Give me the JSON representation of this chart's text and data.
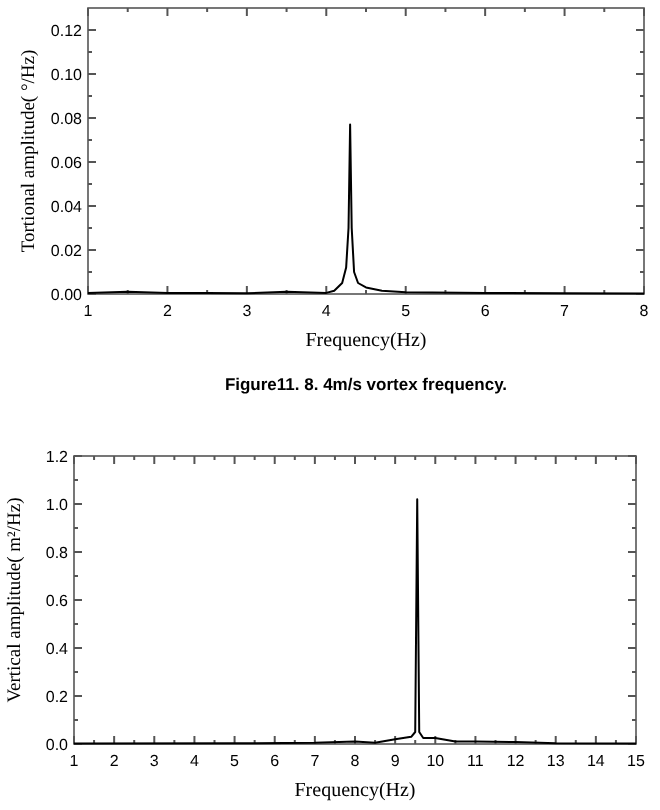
{
  "chart_data": [
    {
      "type": "line",
      "xlabel": "Frequency(Hz)",
      "ylabel": "Tortional amplitude( °/Hz)",
      "annotations": [
        "Figure11. 8. 4m/s vortex frequency."
      ],
      "xlim": [
        1,
        8
      ],
      "ylim": [
        0,
        0.13
      ],
      "xticks": [
        1,
        {
          "value": 1.5,
          "label": null
        },
        2,
        {
          "value": 2.5,
          "label": null
        },
        3,
        {
          "value": 3.5,
          "label": null
        },
        4,
        {
          "value": 4.5,
          "label": null
        },
        5,
        {
          "value": 5.5,
          "label": null
        },
        6,
        {
          "value": 6.5,
          "label": null
        },
        7,
        {
          "value": 7.5,
          "label": null
        },
        8
      ],
      "yticks": [
        {
          "value": 0,
          "label": "0.00"
        },
        {
          "value": 0.01,
          "label": null
        },
        {
          "value": 0.02,
          "label": "0.02"
        },
        {
          "value": 0.03,
          "label": null
        },
        {
          "value": 0.04,
          "label": "0.04"
        },
        {
          "value": 0.05,
          "label": null
        },
        {
          "value": 0.06,
          "label": "0.06"
        },
        {
          "value": 0.07,
          "label": null
        },
        {
          "value": 0.08,
          "label": "0.08"
        },
        {
          "value": 0.09,
          "label": null
        },
        {
          "value": 0.1,
          "label": "0.10"
        },
        {
          "value": 0.11,
          "label": null
        },
        {
          "value": 0.12,
          "label": "0.12"
        }
      ],
      "series": [
        {
          "color": "#000000",
          "x": [
            1,
            1.5,
            2,
            2.5,
            3,
            3.5,
            4,
            4.1,
            4.2,
            4.25,
            4.28,
            4.3,
            4.32,
            4.35,
            4.4,
            4.5,
            4.7,
            5,
            6,
            7,
            8
          ],
          "values": [
            0.0005,
            0.001,
            0.0005,
            0.0005,
            0.0003,
            0.001,
            0.0005,
            0.0015,
            0.005,
            0.012,
            0.03,
            0.077,
            0.03,
            0.01,
            0.005,
            0.003,
            0.0015,
            0.0008,
            0.0005,
            0.0003,
            0.0002
          ]
        }
      ]
    },
    {
      "type": "line",
      "xlabel": "Frequency(Hz)",
      "ylabel": "Vertical amplitude( m²/Hz)",
      "xlim": [
        1,
        15
      ],
      "ylim": [
        0,
        1.2
      ],
      "xticks": [
        1,
        {
          "value": 1.5,
          "label": null
        },
        2,
        {
          "value": 2.5,
          "label": null
        },
        3,
        {
          "value": 3.5,
          "label": null
        },
        4,
        {
          "value": 4.5,
          "label": null
        },
        5,
        {
          "value": 5.5,
          "label": null
        },
        6,
        {
          "value": 6.5,
          "label": null
        },
        7,
        {
          "value": 7.5,
          "label": null
        },
        8,
        {
          "value": 8.5,
          "label": null
        },
        9,
        {
          "value": 9.5,
          "label": null
        },
        10,
        {
          "value": 10.5,
          "label": null
        },
        11,
        {
          "value": 11.5,
          "label": null
        },
        12,
        {
          "value": 12.5,
          "label": null
        },
        13,
        {
          "value": 13.5,
          "label": null
        },
        14,
        {
          "value": 14.5,
          "label": null
        },
        15
      ],
      "yticks": [
        {
          "value": 0,
          "label": "0.0"
        },
        {
          "value": 0.1,
          "label": null
        },
        {
          "value": 0.2,
          "label": "0.2"
        },
        {
          "value": 0.3,
          "label": null
        },
        {
          "value": 0.4,
          "label": "0.4"
        },
        {
          "value": 0.5,
          "label": null
        },
        {
          "value": 0.6,
          "label": "0.6"
        },
        {
          "value": 0.7,
          "label": null
        },
        {
          "value": 0.8,
          "label": "0.8"
        },
        {
          "value": 0.9,
          "label": null
        },
        {
          "value": 1,
          "label": "1.0"
        },
        {
          "value": 1.1,
          "label": null
        },
        {
          "value": 1.2,
          "label": "1.2"
        }
      ],
      "series": [
        {
          "color": "#000000",
          "x": [
            1,
            5,
            7,
            8,
            8.5,
            9,
            9.4,
            9.5,
            9.55,
            9.6,
            9.7,
            10,
            10.5,
            11,
            12,
            13,
            15
          ],
          "values": [
            0.002,
            0.003,
            0.005,
            0.01,
            0.005,
            0.02,
            0.03,
            0.05,
            1.02,
            0.05,
            0.025,
            0.025,
            0.01,
            0.01,
            0.008,
            0.003,
            0.002
          ]
        }
      ]
    }
  ]
}
